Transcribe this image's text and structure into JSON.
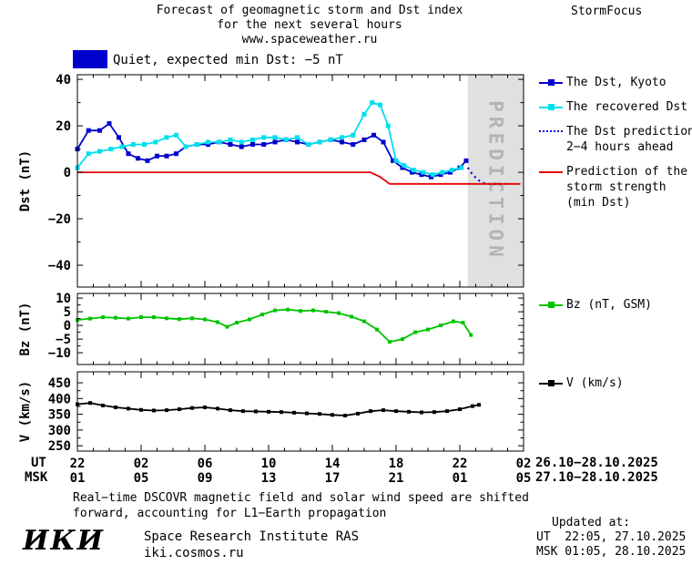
{
  "header": {
    "title_line1": "Forecast of geomagnetic storm and Dst index",
    "title_line2": "for the next several hours",
    "title_line3": "www.spaceweather.ru",
    "brand": "StormFocus"
  },
  "status": {
    "label": "Quiet, expected min Dst: −5 nT",
    "box_color": "#0000cd"
  },
  "legend": {
    "dst_kyoto": {
      "label": "The Dst, Kyoto",
      "color": "#0000cd"
    },
    "recovered": {
      "label": "The recovered Dst",
      "color": "#00dfee"
    },
    "prediction": {
      "label_line1": "The Dst prediction",
      "label_line2": "2−4 hours ahead",
      "color": "#0000cd"
    },
    "strength": {
      "label_line1": "Prediction of the",
      "label_line2": "storm strength",
      "label_line3": "(min Dst)",
      "color": "#e80000"
    },
    "bz": {
      "label": "Bz (nT, GSM)",
      "color": "#00c300"
    },
    "v": {
      "label": "V (km/s)",
      "color": "#000000"
    }
  },
  "axis": {
    "ut_label": "UT",
    "msk_label": "MSK",
    "tick_hours": [
      0,
      4,
      8,
      12,
      16,
      20,
      24,
      28
    ],
    "ut_ticks": [
      "22",
      "02",
      "06",
      "10",
      "14",
      "18",
      "22",
      "02"
    ],
    "msk_ticks": [
      "01",
      "05",
      "09",
      "13",
      "17",
      "21",
      "01",
      "05"
    ],
    "ut_range": "26.10−28.10.2025",
    "msk_range": "27.10−28.10.2025"
  },
  "chart_data": [
    {
      "id": "dst",
      "type": "line",
      "ylabel": "Dst (nT)",
      "ylim": [
        -49.4,
        42
      ],
      "yticks": [
        40,
        20,
        0,
        -20,
        -40
      ],
      "xlim_hours": [
        0,
        28
      ],
      "prediction_band": {
        "start_hour": 24.5,
        "end_hour": 28,
        "label": "PREDICTION",
        "color": "#e0e0e0",
        "text_color": "#b4b4b4"
      },
      "series": [
        {
          "name": "The Dst, Kyoto",
          "color": "#0000cd",
          "style": "solid",
          "marker": "square",
          "points": [
            [
              0,
              10
            ],
            [
              0.7,
              18
            ],
            [
              1.4,
              18
            ],
            [
              2,
              21
            ],
            [
              2.6,
              15
            ],
            [
              3.2,
              8
            ],
            [
              3.8,
              6
            ],
            [
              4.4,
              5
            ],
            [
              5,
              7
            ],
            [
              5.6,
              7
            ],
            [
              6.2,
              8
            ],
            [
              6.8,
              11
            ],
            [
              7.5,
              12
            ],
            [
              8.2,
              12
            ],
            [
              8.9,
              13
            ],
            [
              9.6,
              12
            ],
            [
              10.3,
              11
            ],
            [
              11,
              12
            ],
            [
              11.7,
              12
            ],
            [
              12.4,
              13
            ],
            [
              13.1,
              14
            ],
            [
              13.8,
              13
            ],
            [
              14.5,
              12
            ],
            [
              15.2,
              13
            ],
            [
              15.9,
              14
            ],
            [
              16.6,
              13
            ],
            [
              17.3,
              12
            ],
            [
              18,
              14
            ],
            [
              18.6,
              16
            ],
            [
              19.2,
              13
            ],
            [
              19.8,
              5
            ],
            [
              20.4,
              2
            ],
            [
              21,
              0
            ],
            [
              21.6,
              -1
            ],
            [
              22.2,
              -2
            ],
            [
              22.8,
              -1
            ],
            [
              23.4,
              0
            ],
            [
              24,
              2
            ],
            [
              24.4,
              5
            ]
          ]
        },
        {
          "name": "The recovered Dst",
          "color": "#00dfee",
          "style": "solid",
          "marker": "square",
          "points": [
            [
              0,
              2
            ],
            [
              0.7,
              8
            ],
            [
              1.4,
              9
            ],
            [
              2.1,
              10
            ],
            [
              2.8,
              11
            ],
            [
              3.5,
              12
            ],
            [
              4.2,
              12
            ],
            [
              4.9,
              13
            ],
            [
              5.6,
              15
            ],
            [
              6.2,
              16
            ],
            [
              6.8,
              11
            ],
            [
              7.5,
              12
            ],
            [
              8.2,
              13
            ],
            [
              8.9,
              13
            ],
            [
              9.6,
              14
            ],
            [
              10.3,
              13
            ],
            [
              11,
              14
            ],
            [
              11.7,
              15
            ],
            [
              12.4,
              15
            ],
            [
              13.1,
              14
            ],
            [
              13.8,
              15
            ],
            [
              14.5,
              12
            ],
            [
              15.2,
              13
            ],
            [
              15.9,
              14
            ],
            [
              16.6,
              15
            ],
            [
              17.3,
              16
            ],
            [
              18,
              25
            ],
            [
              18.5,
              30
            ],
            [
              19,
              29
            ],
            [
              19.5,
              20
            ],
            [
              20,
              5
            ],
            [
              20.5,
              3
            ],
            [
              21.1,
              1
            ],
            [
              21.7,
              0
            ],
            [
              22.3,
              -1
            ],
            [
              22.9,
              0
            ],
            [
              23.5,
              1
            ],
            [
              24.1,
              2
            ]
          ]
        },
        {
          "name": "The Dst prediction 2−4 hours ahead",
          "color": "#0000cd",
          "style": "dotted",
          "marker": "none",
          "points": [
            [
              24.5,
              2
            ],
            [
              24.8,
              -1
            ],
            [
              25.1,
              -3
            ],
            [
              25.4,
              -4.5
            ],
            [
              25.8,
              -5
            ],
            [
              26.3,
              -5
            ],
            [
              26.8,
              -5
            ],
            [
              27.2,
              -5
            ]
          ]
        },
        {
          "name": "Prediction of the storm strength (min Dst)",
          "color": "#e80000",
          "style": "solid",
          "marker": "none",
          "points": [
            [
              0,
              0
            ],
            [
              18.4,
              0
            ],
            [
              19,
              -2
            ],
            [
              19.6,
              -5
            ],
            [
              27.8,
              -5
            ]
          ]
        }
      ]
    },
    {
      "id": "bz",
      "type": "line",
      "ylabel": "Bz (nT)",
      "ylim": [
        -14.3,
        11.7
      ],
      "yticks": [
        10,
        5,
        0,
        -5,
        -10
      ],
      "xlim_hours": [
        0,
        28
      ],
      "series": [
        {
          "name": "Bz (nT, GSM)",
          "color": "#00c300",
          "style": "solid",
          "marker": "square",
          "points": [
            [
              0,
              2
            ],
            [
              0.8,
              2.5
            ],
            [
              1.6,
              3
            ],
            [
              2.4,
              2.8
            ],
            [
              3.2,
              2.5
            ],
            [
              4,
              3
            ],
            [
              4.8,
              3
            ],
            [
              5.6,
              2.6
            ],
            [
              6.4,
              2.3
            ],
            [
              7.2,
              2.6
            ],
            [
              8,
              2.2
            ],
            [
              8.8,
              1.2
            ],
            [
              9.4,
              -0.5
            ],
            [
              10,
              1
            ],
            [
              10.8,
              2.2
            ],
            [
              11.6,
              4
            ],
            [
              12.4,
              5.5
            ],
            [
              13.2,
              5.8
            ],
            [
              14,
              5.3
            ],
            [
              14.8,
              5.5
            ],
            [
              15.6,
              5
            ],
            [
              16.4,
              4.5
            ],
            [
              17.2,
              3.2
            ],
            [
              18,
              1.5
            ],
            [
              18.8,
              -1.5
            ],
            [
              19.6,
              -6
            ],
            [
              20.4,
              -5
            ],
            [
              21.2,
              -2.5
            ],
            [
              22,
              -1.5
            ],
            [
              22.8,
              0
            ],
            [
              23.6,
              1.5
            ],
            [
              24.2,
              1
            ],
            [
              24.7,
              -3.5
            ]
          ]
        }
      ]
    },
    {
      "id": "v",
      "type": "line",
      "ylabel": "V (km/s)",
      "ylim": [
        233,
        485
      ],
      "yticks": [
        450,
        400,
        350,
        300,
        250
      ],
      "xlim_hours": [
        0,
        28
      ],
      "series": [
        {
          "name": "V (km/s)",
          "color": "#000000",
          "style": "solid",
          "marker": "square",
          "points": [
            [
              0,
              382
            ],
            [
              0.8,
              386
            ],
            [
              1.6,
              378
            ],
            [
              2.4,
              372
            ],
            [
              3.2,
              368
            ],
            [
              4,
              364
            ],
            [
              4.8,
              362
            ],
            [
              5.6,
              363
            ],
            [
              6.4,
              366
            ],
            [
              7.2,
              370
            ],
            [
              8,
              372
            ],
            [
              8.8,
              368
            ],
            [
              9.6,
              363
            ],
            [
              10.4,
              360
            ],
            [
              11.2,
              359
            ],
            [
              12,
              358
            ],
            [
              12.8,
              357
            ],
            [
              13.6,
              355
            ],
            [
              14.4,
              353
            ],
            [
              15.2,
              351
            ],
            [
              16,
              348
            ],
            [
              16.8,
              346
            ],
            [
              17.6,
              352
            ],
            [
              18.4,
              360
            ],
            [
              19.2,
              363
            ],
            [
              20,
              360
            ],
            [
              20.8,
              358
            ],
            [
              21.6,
              356
            ],
            [
              22.4,
              357
            ],
            [
              23.2,
              360
            ],
            [
              24,
              366
            ],
            [
              24.8,
              376
            ],
            [
              25.2,
              380
            ]
          ]
        }
      ]
    }
  ],
  "footer": {
    "note_line1": "Real−time DSCOVR magnetic field and solar wind speed are shifted",
    "note_line2": "forward, accounting for L1−Earth propagation",
    "updated_label": "Updated at:",
    "updated_ut": "UT  22:05, 27.10.2025",
    "updated_msk": "MSK 01:05, 28.10.2025",
    "logo": "ИКИ",
    "institute": "Space Research Institute RAS",
    "site": "iki.cosmos.ru"
  }
}
